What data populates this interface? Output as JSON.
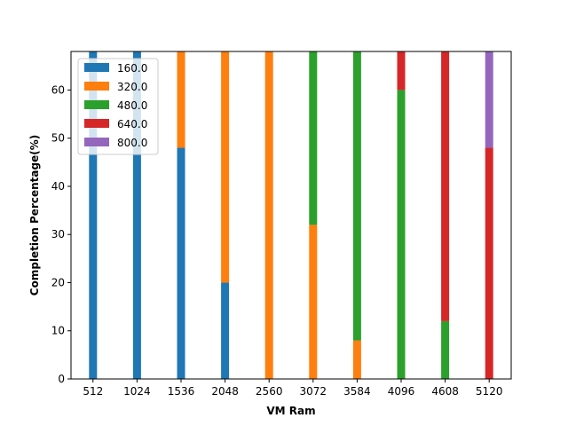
{
  "chart_data": {
    "type": "bar",
    "stacked": true,
    "xlabel": "VM Ram",
    "ylabel": "Completion Percentage(%)",
    "categories": [
      "512",
      "1024",
      "1536",
      "2048",
      "2560",
      "3072",
      "3584",
      "4096",
      "4608",
      "5120"
    ],
    "ylim": [
      0,
      68
    ],
    "yticks": [
      0,
      10,
      20,
      30,
      40,
      50,
      60
    ],
    "grid": false,
    "legend_position": "top-left",
    "series": [
      {
        "name": "160.0",
        "color": "#1f77b4",
        "values": [
          68,
          68,
          48,
          20,
          0,
          0,
          0,
          0,
          0,
          0
        ]
      },
      {
        "name": "320.0",
        "color": "#ff7f0e",
        "values": [
          0,
          0,
          20,
          48,
          68,
          32,
          8,
          0,
          0,
          0
        ]
      },
      {
        "name": "480.0",
        "color": "#2ca02c",
        "values": [
          0,
          0,
          0,
          0,
          0,
          36,
          60,
          60,
          12,
          0
        ]
      },
      {
        "name": "640.0",
        "color": "#d62728",
        "values": [
          0,
          0,
          0,
          0,
          0,
          0,
          0,
          8,
          56,
          48
        ]
      },
      {
        "name": "800.0",
        "color": "#9467bd",
        "values": [
          0,
          0,
          0,
          0,
          0,
          0,
          0,
          0,
          0,
          20
        ]
      }
    ]
  }
}
